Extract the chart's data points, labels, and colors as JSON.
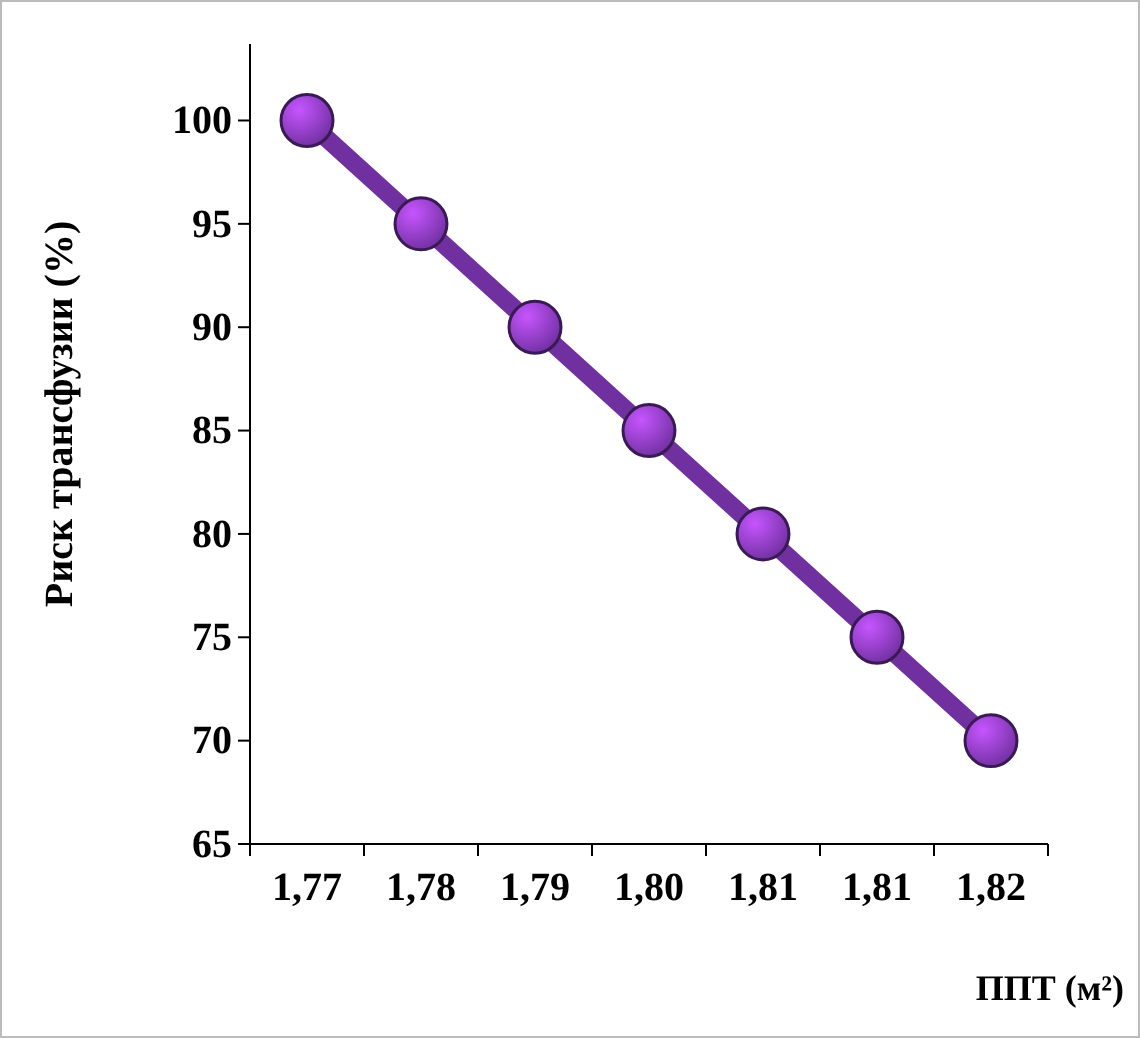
{
  "chart_data": {
    "type": "line",
    "xlabel": "ППТ (м²)",
    "ylabel": "Риск трансфузии (%)",
    "categories": [
      "1,77",
      "1,78",
      "1,79",
      "1,80",
      "1,81",
      "1,81",
      "1,82"
    ],
    "series": [
      {
        "color": "#7030a0",
        "values": [
          100,
          95,
          90,
          85,
          80,
          75,
          70
        ]
      }
    ],
    "ylim": [
      65,
      103.7
    ],
    "yticks": [
      65,
      70,
      75,
      80,
      85,
      90,
      95,
      100
    ],
    "grid": false,
    "marker": "circle",
    "line_style": "solid"
  }
}
